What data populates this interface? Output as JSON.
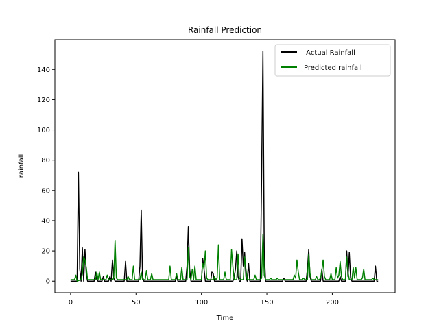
{
  "chart_data": {
    "type": "line",
    "title": "Rainfall Prediction",
    "xlabel": "Time",
    "ylabel": "rainfall",
    "xlim": [
      -12,
      248
    ],
    "ylim": [
      -7.6,
      159.6
    ],
    "xticks": [
      0,
      50,
      100,
      150,
      200
    ],
    "yticks": [
      0,
      20,
      40,
      60,
      80,
      100,
      120,
      140
    ],
    "grid": false,
    "legend_position": "top-right",
    "series": [
      {
        "name": " Actual Rainfall",
        "color": "#000000",
        "points": [
          [
            0,
            0
          ],
          [
            5,
            0
          ],
          [
            6,
            72
          ],
          [
            7,
            8
          ],
          [
            8,
            0
          ],
          [
            9,
            22
          ],
          [
            10,
            0
          ],
          [
            11,
            21
          ],
          [
            12,
            4
          ],
          [
            13,
            0
          ],
          [
            18,
            0
          ],
          [
            19,
            6
          ],
          [
            20,
            1
          ],
          [
            21,
            0
          ],
          [
            24,
            0
          ],
          [
            25,
            3
          ],
          [
            26,
            0
          ],
          [
            29,
            0
          ],
          [
            30,
            3
          ],
          [
            31,
            0
          ],
          [
            32,
            14
          ],
          [
            33,
            2
          ],
          [
            34,
            0
          ],
          [
            41,
            0
          ],
          [
            42,
            13
          ],
          [
            43,
            0
          ],
          [
            52,
            0
          ],
          [
            53,
            10
          ],
          [
            54,
            47
          ],
          [
            55,
            3
          ],
          [
            56,
            0
          ],
          [
            80,
            0
          ],
          [
            81,
            3
          ],
          [
            82,
            0
          ],
          [
            88,
            0
          ],
          [
            89,
            10
          ],
          [
            90,
            36
          ],
          [
            91,
            8
          ],
          [
            92,
            0
          ],
          [
            100,
            0
          ],
          [
            101,
            15
          ],
          [
            102,
            8
          ],
          [
            103,
            0
          ],
          [
            107,
            0
          ],
          [
            108,
            6
          ],
          [
            109,
            5
          ],
          [
            110,
            0
          ],
          [
            124,
            0
          ],
          [
            125,
            2
          ],
          [
            126,
            8
          ],
          [
            127,
            20
          ],
          [
            128,
            3
          ],
          [
            129,
            0
          ],
          [
            130,
            0
          ],
          [
            131,
            28
          ],
          [
            132,
            10
          ],
          [
            133,
            19
          ],
          [
            134,
            3
          ],
          [
            135,
            0
          ],
          [
            136,
            12
          ],
          [
            137,
            0
          ],
          [
            145,
            0
          ],
          [
            146,
            70
          ],
          [
            147,
            152
          ],
          [
            148,
            20
          ],
          [
            149,
            0
          ],
          [
            162,
            0
          ],
          [
            163,
            2
          ],
          [
            164,
            0
          ],
          [
            180,
            0
          ],
          [
            181,
            8
          ],
          [
            182,
            21
          ],
          [
            183,
            3
          ],
          [
            184,
            0
          ],
          [
            191,
            0
          ],
          [
            192,
            8
          ],
          [
            193,
            0
          ],
          [
            205,
            0
          ],
          [
            206,
            3
          ],
          [
            207,
            0
          ],
          [
            210,
            0
          ],
          [
            211,
            20
          ],
          [
            212,
            3
          ],
          [
            213,
            19
          ],
          [
            214,
            2
          ],
          [
            215,
            0
          ],
          [
            232,
            0
          ],
          [
            233,
            10
          ],
          [
            234,
            0
          ],
          [
            235,
            0
          ]
        ]
      },
      {
        "name": "Predicted rainfall",
        "color": "#008000",
        "points": [
          [
            0,
            1
          ],
          [
            3,
            1
          ],
          [
            4,
            4
          ],
          [
            5,
            0
          ],
          [
            8,
            1
          ],
          [
            9,
            5
          ],
          [
            10,
            16
          ],
          [
            11,
            14
          ],
          [
            12,
            9
          ],
          [
            13,
            1
          ],
          [
            18,
            1
          ],
          [
            19,
            1
          ],
          [
            20,
            6
          ],
          [
            21,
            1
          ],
          [
            22,
            6
          ],
          [
            23,
            1
          ],
          [
            27,
            1
          ],
          [
            28,
            4
          ],
          [
            29,
            1
          ],
          [
            32,
            1
          ],
          [
            33,
            2
          ],
          [
            34,
            27
          ],
          [
            35,
            2
          ],
          [
            36,
            1
          ],
          [
            43,
            1
          ],
          [
            44,
            3
          ],
          [
            45,
            1
          ],
          [
            47,
            1
          ],
          [
            48,
            10
          ],
          [
            49,
            1
          ],
          [
            53,
            1
          ],
          [
            54,
            6
          ],
          [
            55,
            1
          ],
          [
            57,
            1
          ],
          [
            58,
            7
          ],
          [
            59,
            1
          ],
          [
            61,
            1
          ],
          [
            62,
            5
          ],
          [
            63,
            1
          ],
          [
            75,
            1
          ],
          [
            76,
            10
          ],
          [
            77,
            1
          ],
          [
            80,
            1
          ],
          [
            81,
            5
          ],
          [
            82,
            1
          ],
          [
            84,
            1
          ],
          [
            85,
            9
          ],
          [
            86,
            1
          ],
          [
            89,
            1
          ],
          [
            90,
            22
          ],
          [
            91,
            3
          ],
          [
            92,
            1
          ],
          [
            93,
            8
          ],
          [
            94,
            1
          ],
          [
            95,
            10
          ],
          [
            96,
            1
          ],
          [
            100,
            1
          ],
          [
            101,
            12
          ],
          [
            102,
            8
          ],
          [
            103,
            20
          ],
          [
            104,
            2
          ],
          [
            105,
            1
          ],
          [
            109,
            1
          ],
          [
            110,
            3
          ],
          [
            111,
            1
          ],
          [
            112,
            2
          ],
          [
            113,
            24
          ],
          [
            114,
            1
          ],
          [
            117,
            1
          ],
          [
            118,
            6
          ],
          [
            119,
            1
          ],
          [
            122,
            1
          ],
          [
            123,
            21
          ],
          [
            124,
            10
          ],
          [
            125,
            1
          ],
          [
            127,
            1
          ],
          [
            128,
            18
          ],
          [
            129,
            2
          ],
          [
            130,
            1
          ],
          [
            132,
            1
          ],
          [
            133,
            16
          ],
          [
            134,
            8
          ],
          [
            135,
            1
          ],
          [
            140,
            1
          ],
          [
            141,
            4
          ],
          [
            142,
            1
          ],
          [
            145,
            1
          ],
          [
            146,
            2
          ],
          [
            147,
            31
          ],
          [
            148,
            4
          ],
          [
            149,
            1
          ],
          [
            152,
            1
          ],
          [
            153,
            2
          ],
          [
            154,
            1
          ],
          [
            157,
            1
          ],
          [
            158,
            2
          ],
          [
            159,
            1
          ],
          [
            170,
            1
          ],
          [
            171,
            4
          ],
          [
            172,
            2
          ],
          [
            173,
            14
          ],
          [
            174,
            6
          ],
          [
            175,
            1
          ],
          [
            177,
            1
          ],
          [
            178,
            2
          ],
          [
            179,
            1
          ],
          [
            181,
            1
          ],
          [
            182,
            18
          ],
          [
            183,
            5
          ],
          [
            184,
            1
          ],
          [
            187,
            1
          ],
          [
            188,
            3
          ],
          [
            189,
            1
          ],
          [
            190,
            1
          ],
          [
            191,
            2
          ],
          [
            192,
            7
          ],
          [
            193,
            14
          ],
          [
            194,
            3
          ],
          [
            195,
            1
          ],
          [
            198,
            1
          ],
          [
            199,
            5
          ],
          [
            200,
            1
          ],
          [
            202,
            1
          ],
          [
            203,
            9
          ],
          [
            204,
            2
          ],
          [
            205,
            4
          ],
          [
            206,
            13
          ],
          [
            207,
            3
          ],
          [
            208,
            1
          ],
          [
            210,
            1
          ],
          [
            211,
            16
          ],
          [
            212,
            6
          ],
          [
            213,
            1
          ],
          [
            215,
            1
          ],
          [
            216,
            9
          ],
          [
            217,
            2
          ],
          [
            218,
            9
          ],
          [
            219,
            1
          ],
          [
            222,
            1
          ],
          [
            223,
            2
          ],
          [
            224,
            8
          ],
          [
            225,
            1
          ],
          [
            230,
            1
          ],
          [
            231,
            2
          ],
          [
            232,
            1
          ],
          [
            235,
            1
          ]
        ]
      }
    ]
  }
}
